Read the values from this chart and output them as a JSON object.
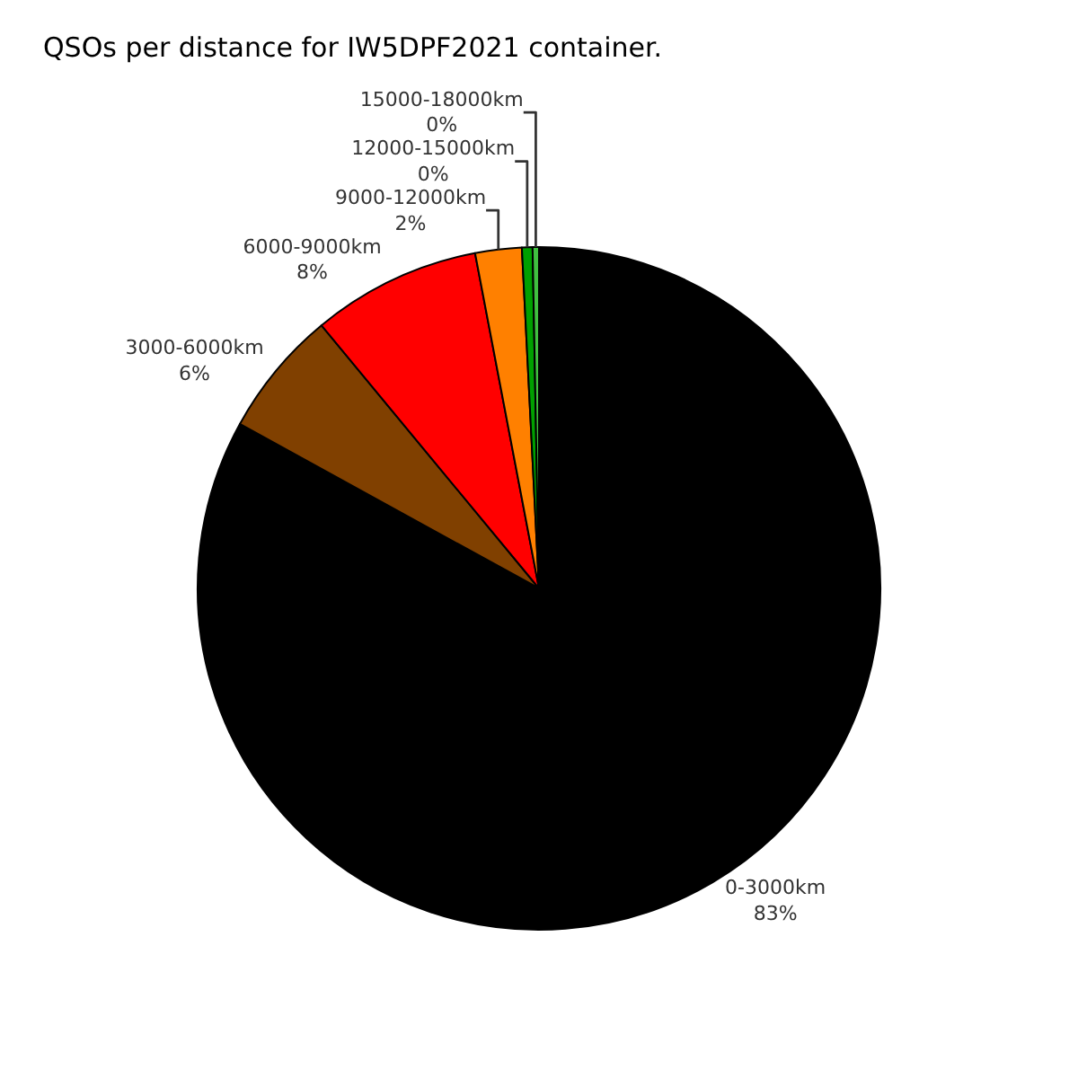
{
  "chart_data": {
    "type": "pie",
    "title": "QSOs per distance for IW5DPF2021 container.",
    "categories": [
      "0-3000km",
      "3000-6000km",
      "6000-9000km",
      "9000-12000km",
      "12000-15000km",
      "15000-18000km"
    ],
    "values": [
      83,
      6,
      8,
      2.2,
      0.5,
      0.3
    ],
    "value_labels": [
      "83%",
      "6%",
      "8%",
      "2%",
      "0%",
      "0%"
    ],
    "colors": [
      "#000000",
      "#804000",
      "#ff0000",
      "#ff8000",
      "#00a000",
      "#40c040"
    ],
    "legend": false
  }
}
